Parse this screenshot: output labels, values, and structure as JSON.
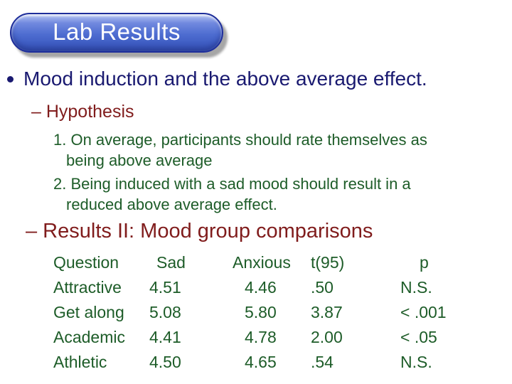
{
  "slide": {
    "title": "Lab Results",
    "main_bullet": "Mood induction and the above average effect.",
    "hypothesis_label": "– Hypothesis",
    "hypothesis_items": [
      "1. On average, participants should rate themselves as\nbeing above average",
      "2. Being induced with a sad mood should result in a\nreduced above average effect."
    ],
    "results_label": "– Results II: Mood group comparisons",
    "table": {
      "headers": [
        "Question",
        "Sad",
        "Anxious",
        "t(95)",
        "p"
      ],
      "rows": [
        [
          "Attractive",
          "4.51",
          "4.46",
          ".50",
          "N.S."
        ],
        [
          "Get along",
          "5.08",
          "5.80",
          "3.87",
          "< .001"
        ],
        [
          "Academic",
          "4.41",
          "4.78",
          "2.00",
          "< .05"
        ],
        [
          "Athletic",
          "4.50",
          "4.65",
          ".54",
          "N.S."
        ]
      ]
    },
    "colors": {
      "bubble_fill_top": "#9db0ec",
      "bubble_fill_bottom": "#3a57ba",
      "bubble_border": "#1e2e9a",
      "title_text": "#ffffff",
      "main_bullet_text": "#191970",
      "sub_heading_text": "#801c1c",
      "body_text": "#1d5c28",
      "background": "#ffffff"
    }
  }
}
